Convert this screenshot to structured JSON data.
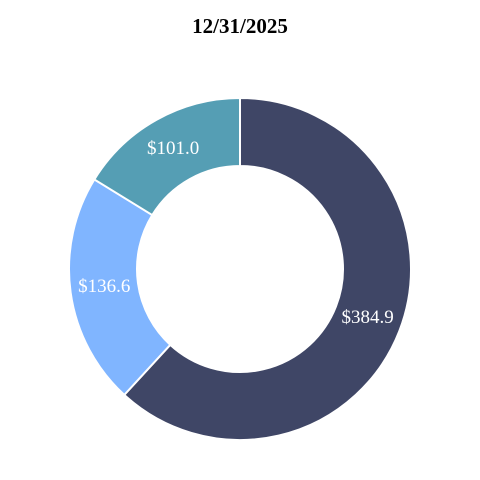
{
  "chart_data": {
    "type": "pie",
    "title": "12/31/2025",
    "donut": true,
    "start": "top",
    "direction": "clockwise",
    "slices": [
      {
        "label": "$384.9",
        "value": 384.9,
        "color": "#3f4666"
      },
      {
        "label": "$136.6",
        "value": 136.6,
        "color": "#80b5ff"
      },
      {
        "label": "$101.0",
        "value": 101.0,
        "color": "#559eb4"
      }
    ]
  }
}
